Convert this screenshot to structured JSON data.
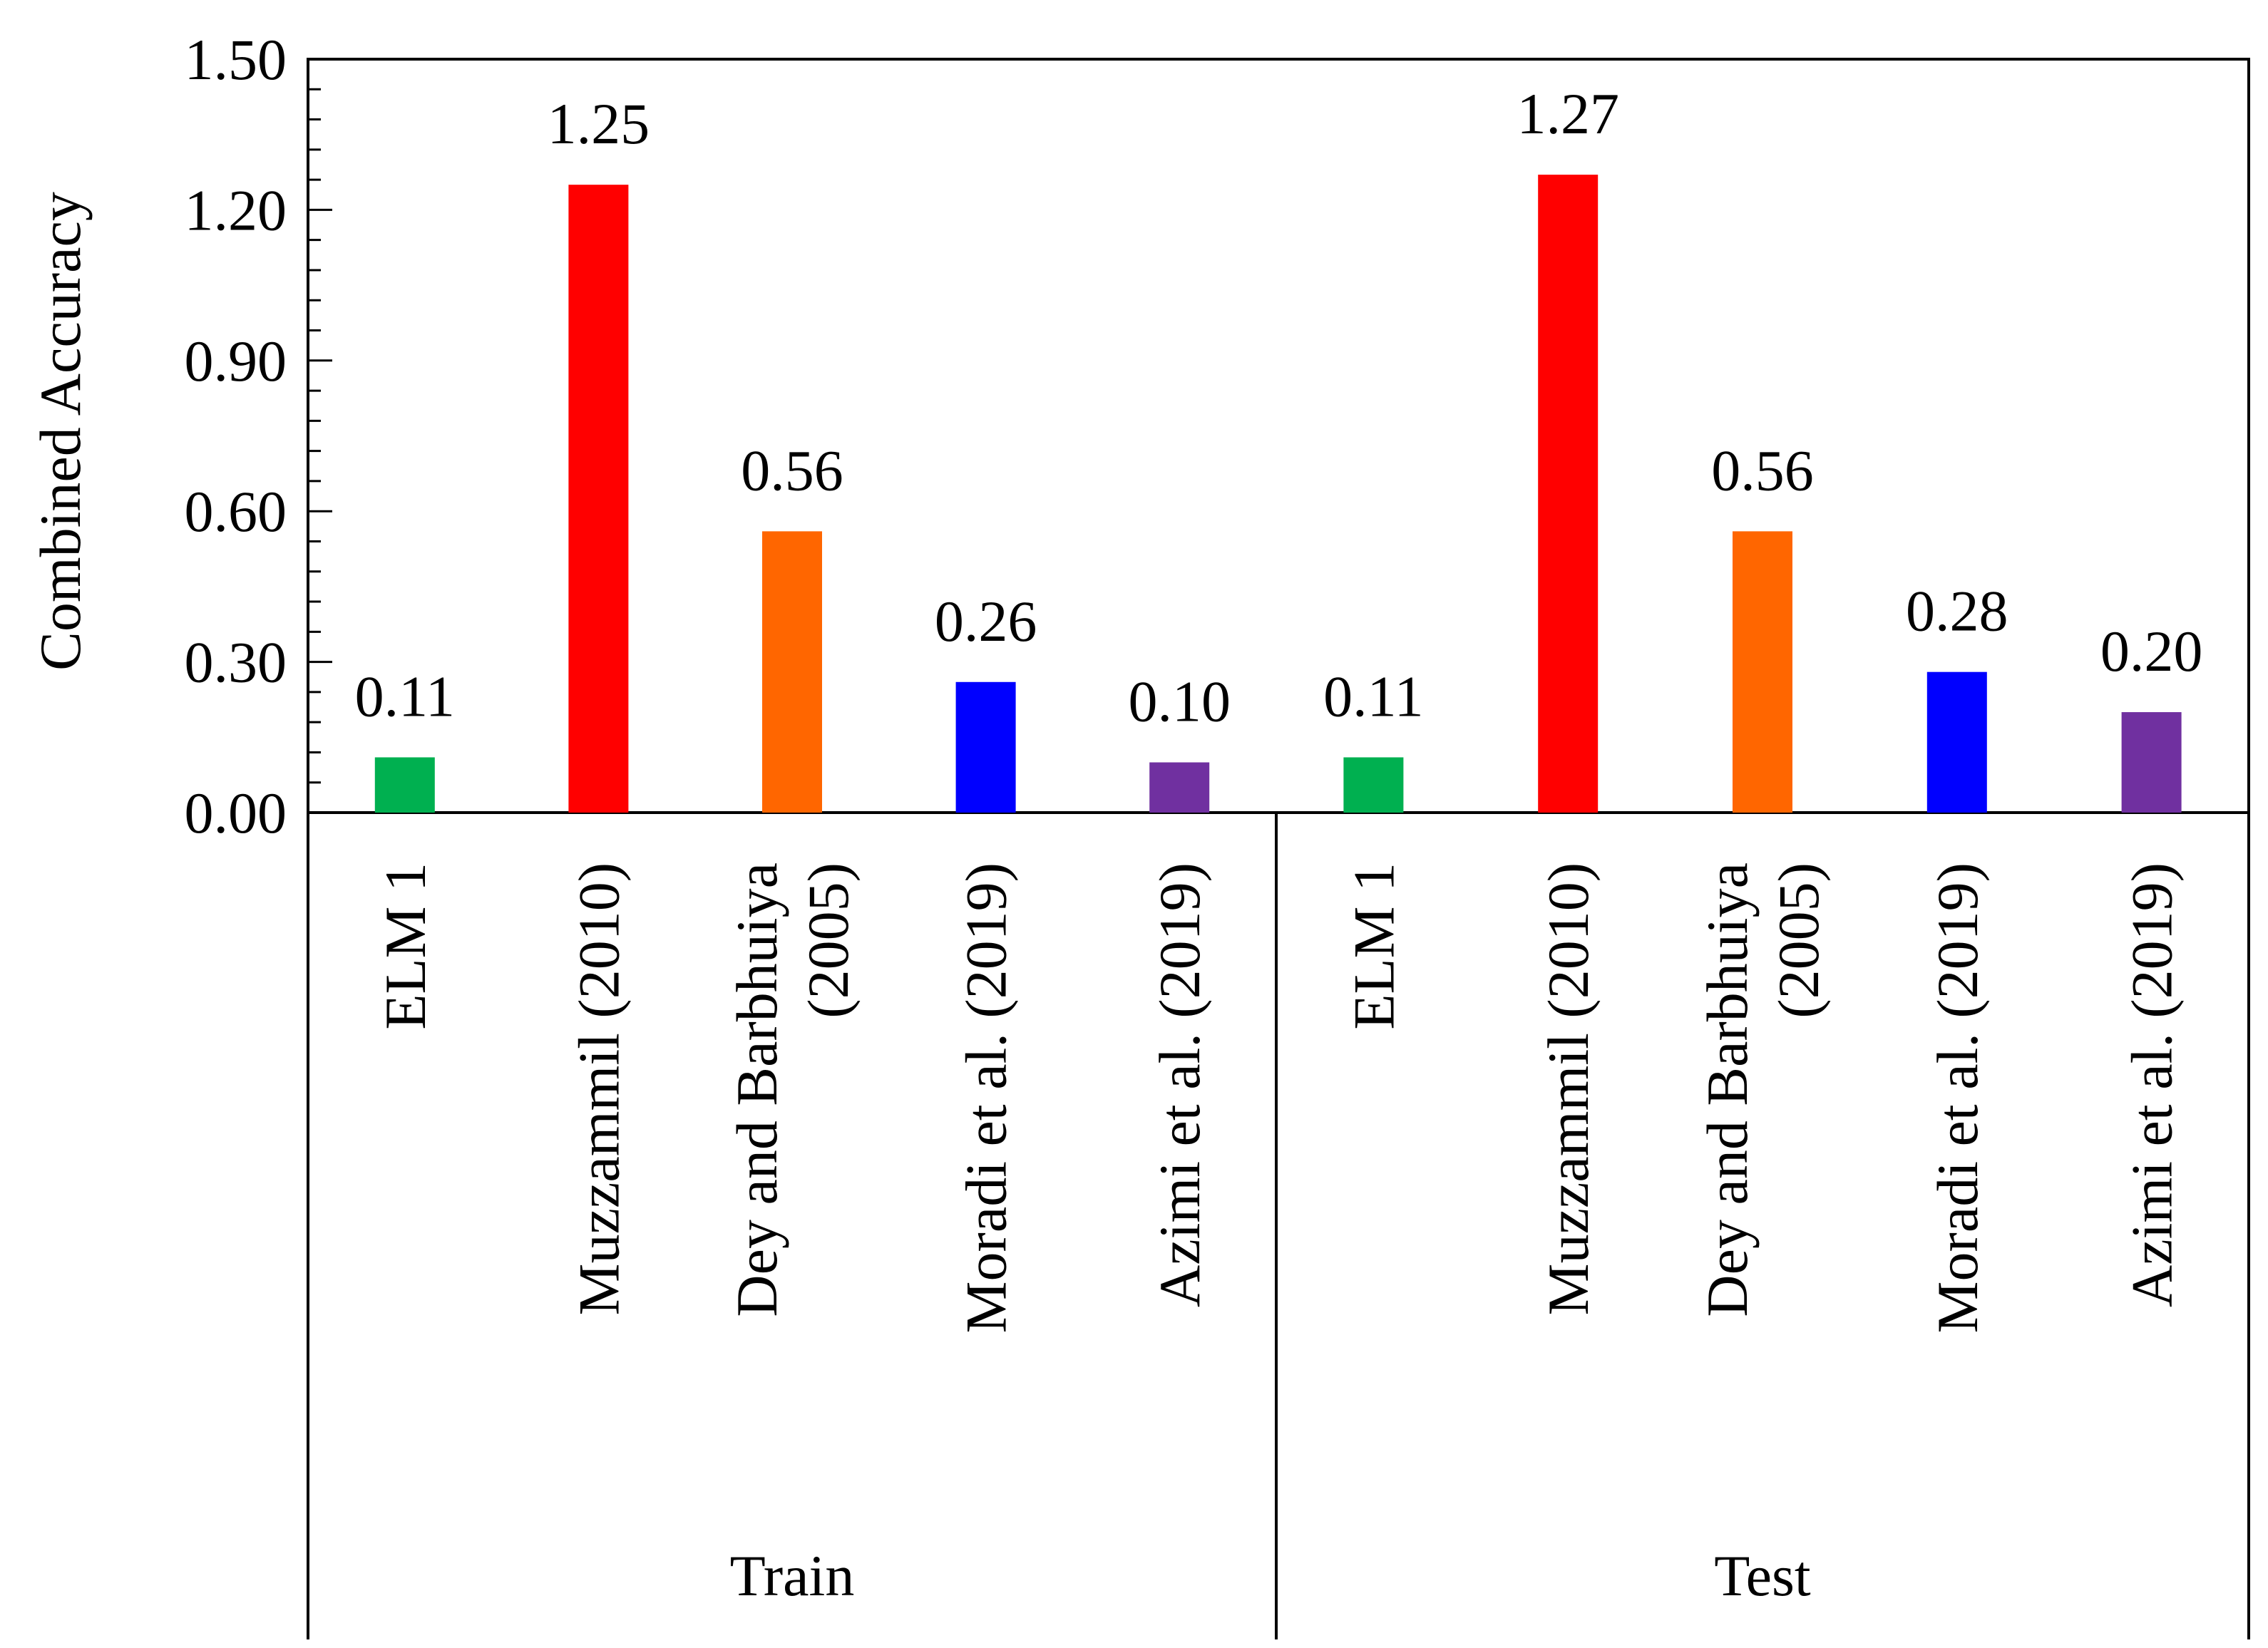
{
  "chart_data": {
    "type": "bar",
    "title": "",
    "xlabel": "",
    "ylabel": "Combined Accuracy",
    "ylim": [
      0,
      1.5
    ],
    "yticks": [
      "0.00",
      "0.30",
      "0.60",
      "0.90",
      "1.20",
      "1.50"
    ],
    "ytick_values": [
      0,
      0.3,
      0.6,
      0.9,
      1.2,
      1.5
    ],
    "grid": false,
    "legend": "none",
    "groups": [
      {
        "name": "Train",
        "bars": [
          {
            "category": "ELM 1",
            "category_lines": [
              "ELM 1"
            ],
            "value": 0.11,
            "label": "0.11",
            "color": "#00B050"
          },
          {
            "category": "Muzzammil (2010)",
            "category_lines": [
              "Muzzammil (2010)"
            ],
            "value": 1.25,
            "label": "1.25",
            "color": "#FF0000"
          },
          {
            "category": "Dey and Barbhuiya (2005)",
            "category_lines": [
              "Dey and Barbhuiya",
              "(2005)"
            ],
            "value": 0.56,
            "label": "0.56",
            "color": "#FF6600"
          },
          {
            "category": "Moradi et al. (2019)",
            "category_lines": [
              "Moradi et al. (2019)"
            ],
            "value": 0.26,
            "label": "0.26",
            "color": "#0000FF"
          },
          {
            "category": "Azimi et al. (2019)",
            "category_lines": [
              "Azimi et al. (2019)"
            ],
            "value": 0.1,
            "label": "0.10",
            "color": "#7030A0"
          }
        ]
      },
      {
        "name": "Test",
        "bars": [
          {
            "category": "ELM 1",
            "category_lines": [
              "ELM 1"
            ],
            "value": 0.11,
            "label": "0.11",
            "color": "#00B050"
          },
          {
            "category": "Muzzammil (2010)",
            "category_lines": [
              "Muzzammil (2010)"
            ],
            "value": 1.27,
            "label": "1.27",
            "color": "#FF0000"
          },
          {
            "category": "Dey and Barbhuiya (2005)",
            "category_lines": [
              "Dey and Barbhuiya",
              "(2005)"
            ],
            "value": 0.56,
            "label": "0.56",
            "color": "#FF6600"
          },
          {
            "category": "Moradi et al. (2019)",
            "category_lines": [
              "Moradi et al. (2019)"
            ],
            "value": 0.28,
            "label": "0.28",
            "color": "#0000FF"
          },
          {
            "category": "Azimi et al. (2019)",
            "category_lines": [
              "Azimi et al. (2019)"
            ],
            "value": 0.2,
            "label": "0.20",
            "color": "#7030A0"
          }
        ]
      }
    ]
  }
}
